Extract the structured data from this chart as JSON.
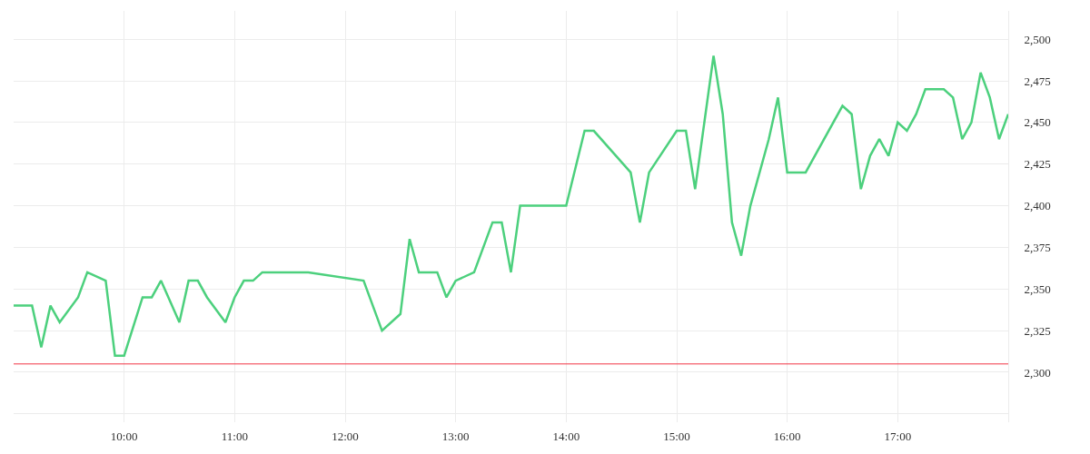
{
  "chart_data": {
    "type": "line",
    "x": [
      9,
      9.1667,
      9.25,
      9.3333,
      9.4167,
      9.5833,
      9.6667,
      9.8333,
      9.9167,
      10,
      10.1667,
      10.25,
      10.3333,
      10.5,
      10.5833,
      10.6667,
      10.75,
      10.9167,
      11,
      11.0833,
      11.1667,
      11.25,
      11.6667,
      12.1667,
      12.3333,
      12.5,
      12.5833,
      12.6667,
      12.8333,
      12.9167,
      13,
      13.1667,
      13.3333,
      13.4167,
      13.5,
      13.5833,
      14,
      14.1667,
      14.25,
      14.5833,
      14.6667,
      14.75,
      15,
      15.0833,
      15.1667,
      15.3333,
      15.4167,
      15.5,
      15.5833,
      15.6667,
      15.8333,
      15.9167,
      16,
      16.1667,
      16.5,
      16.5833,
      16.6667,
      16.75,
      16.8333,
      16.9167,
      17,
      17.0833,
      17.1667,
      17.25,
      17.4167,
      17.5,
      17.5833,
      17.6667,
      17.75,
      17.8333,
      17.9167,
      18
    ],
    "series": [
      {
        "color": "#4cd07d",
        "values": [
          2340,
          2340,
          2315,
          2340,
          2330,
          2345,
          2360,
          2355,
          2310,
          2310,
          2345,
          2345,
          2355,
          2330,
          2355,
          2355,
          2345,
          2330,
          2345,
          2355,
          2355,
          2360,
          2360,
          2355,
          2325,
          2335,
          2380,
          2360,
          2360,
          2345,
          2355,
          2360,
          2390,
          2390,
          2360,
          2400,
          2400,
          2445,
          2445,
          2420,
          2390,
          2420,
          2445,
          2445,
          2410,
          2490,
          2455,
          2390,
          2370,
          2400,
          2440,
          2465,
          2420,
          2420,
          2460,
          2455,
          2410,
          2430,
          2440,
          2430,
          2450,
          2445,
          2455,
          2470,
          2470,
          2465,
          2440,
          2450,
          2480,
          2465,
          2440,
          2455
        ]
      }
    ],
    "xlim": [
      9,
      18
    ],
    "xticks": [
      {
        "value": 10,
        "label": "10:00"
      },
      {
        "value": 11,
        "label": "11:00"
      },
      {
        "value": 12,
        "label": "12:00"
      },
      {
        "value": 13,
        "label": "13:00"
      },
      {
        "value": 14,
        "label": "14:00"
      },
      {
        "value": 15,
        "label": "15:00"
      },
      {
        "value": 16,
        "label": "16:00"
      },
      {
        "value": 17,
        "label": "17:00"
      }
    ],
    "ylim": [
      2270,
      2517
    ],
    "yticks": [
      {
        "value": 2275,
        "label": null
      },
      {
        "value": 2300,
        "label": "2,300"
      },
      {
        "value": 2325,
        "label": "2,325"
      },
      {
        "value": 2350,
        "label": "2,350"
      },
      {
        "value": 2375,
        "label": "2,375"
      },
      {
        "value": 2400,
        "label": "2,400"
      },
      {
        "value": 2425,
        "label": "2,425"
      },
      {
        "value": 2450,
        "label": "2,450"
      },
      {
        "value": 2475,
        "label": "2,475"
      },
      {
        "value": 2500,
        "label": "2,500"
      }
    ],
    "ref_lines": [
      {
        "axis": "y",
        "value": 2305,
        "color": "#f23645"
      }
    ],
    "grid": true,
    "marker": "none",
    "line_style": "solid"
  }
}
